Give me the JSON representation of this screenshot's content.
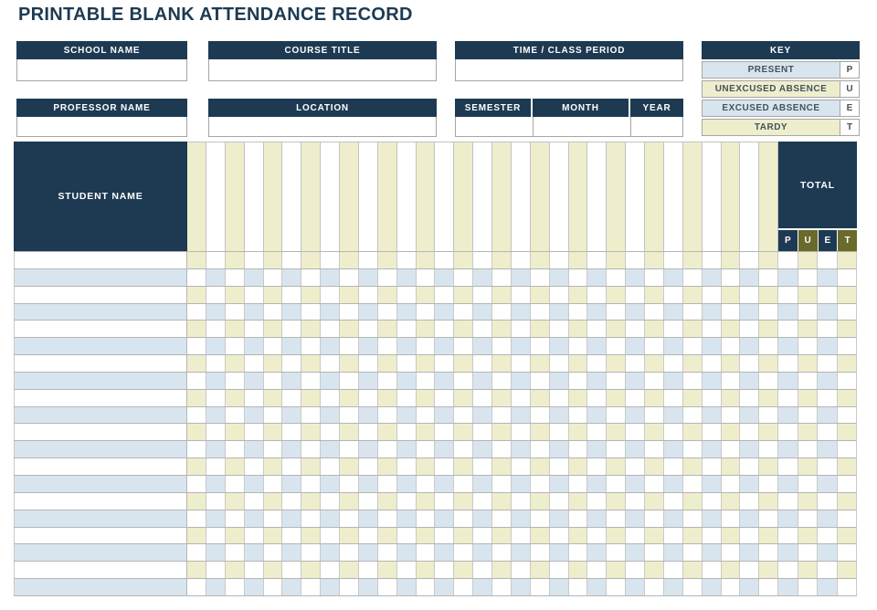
{
  "title": "PRINTABLE BLANK ATTENDANCE RECORD",
  "form": {
    "school_name_label": "SCHOOL NAME",
    "school_name_value": "",
    "course_title_label": "COURSE TITLE",
    "course_title_value": "",
    "time_class_period_label": "TIME / CLASS PERIOD",
    "time_class_period_value": "",
    "professor_name_label": "PROFESSOR NAME",
    "professor_name_value": "",
    "location_label": "LOCATION",
    "location_value": "",
    "semester_label": "SEMESTER",
    "semester_value": "",
    "month_label": "MONTH",
    "month_value": "",
    "year_label": "YEAR",
    "year_value": ""
  },
  "key": {
    "header": "KEY",
    "entries": [
      {
        "label": "PRESENT",
        "code": "P",
        "tint": "#d9e5ee"
      },
      {
        "label": "UNEXCUSED ABSENCE",
        "code": "U",
        "tint": "#eeeecd"
      },
      {
        "label": "EXCUSED ABSENCE",
        "code": "E",
        "tint": "#d9e5ee"
      },
      {
        "label": "TARDY",
        "code": "T",
        "tint": "#eeeecd"
      }
    ]
  },
  "table": {
    "student_name_header": "STUDENT NAME",
    "total_header": "TOTAL",
    "total_columns": [
      {
        "code": "P",
        "header_bg": "#1d3a52"
      },
      {
        "code": "U",
        "header_bg": "#6a6b2b"
      },
      {
        "code": "E",
        "header_bg": "#1d3a52"
      },
      {
        "code": "T",
        "header_bg": "#6a6b2b"
      }
    ],
    "date_column_count": 31,
    "body_row_count": 20,
    "cells_blank_value": ""
  },
  "colors": {
    "navy": "#1d3a52",
    "olive": "#6a6b2b",
    "cream": "#eeeecd",
    "light_blue": "#d9e5ee",
    "grid_border": "#b5b5b5",
    "box_border": "#a6a6a6"
  }
}
